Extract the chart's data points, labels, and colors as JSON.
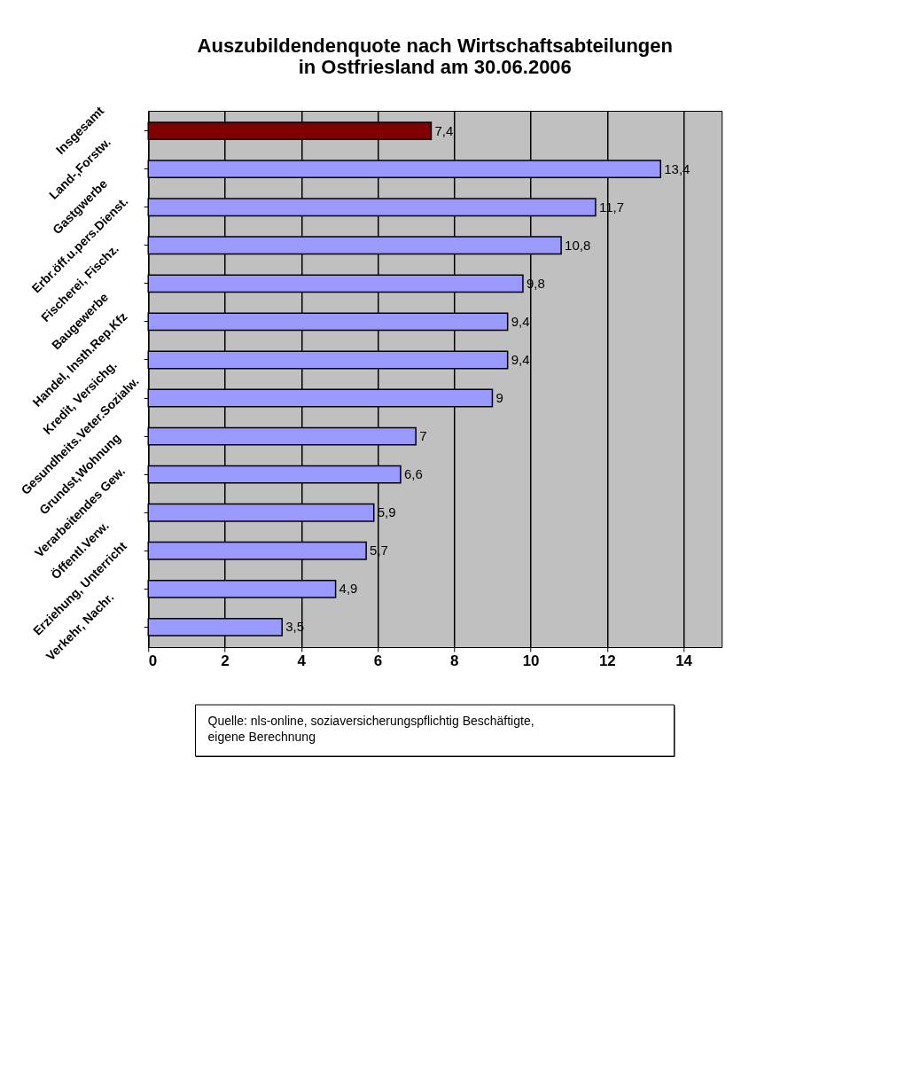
{
  "chart_data": {
    "type": "bar",
    "orientation": "horizontal",
    "title": [
      "Auszubildendenquote nach Wirtschaftsabteilungen",
      "in Ostfriesland am 30.06.2006"
    ],
    "categories": [
      "Insgesamt",
      "Land-,Forstw.",
      "Gastgwerbe",
      "Erbr.öff.u.pers.Dienst.",
      "Fischerei, Fischz.",
      "Baugewerbe",
      "Handel, Insth.Rep.Kfz",
      "Kredit, Versichg.",
      "Gesundheits.Veter.Sozialw.",
      "Grundst,Wohnung",
      "Verarbeitendes Gew.",
      "Öffentl.Verw.",
      "Erziehung, Unterricht",
      "Verkehr, Nachr."
    ],
    "values": [
      7.4,
      13.4,
      11.7,
      10.8,
      9.8,
      9.4,
      9.4,
      9,
      7,
      6.6,
      5.9,
      5.7,
      4.9,
      3.5
    ],
    "value_labels": [
      "7,4",
      "13,4",
      "11,7",
      "10,8",
      "9,8",
      "9,4",
      "9,4",
      "9",
      "7",
      "6,6",
      "5,9",
      "5,7",
      "4,9",
      "3,5"
    ],
    "colors": [
      "#800000",
      "#9999ff",
      "#9999ff",
      "#9999ff",
      "#9999ff",
      "#9999ff",
      "#9999ff",
      "#9999ff",
      "#9999ff",
      "#9999ff",
      "#9999ff",
      "#9999ff",
      "#9999ff",
      "#9999ff"
    ],
    "xlim": [
      0,
      15
    ],
    "xticks": [
      0,
      2,
      4,
      6,
      8,
      10,
      12,
      14
    ],
    "grid": "x",
    "annotations": [
      "Quelle: nls-online, soziaversicherungspflichtig Beschäftigte,\n      eigene Berechnung"
    ]
  }
}
